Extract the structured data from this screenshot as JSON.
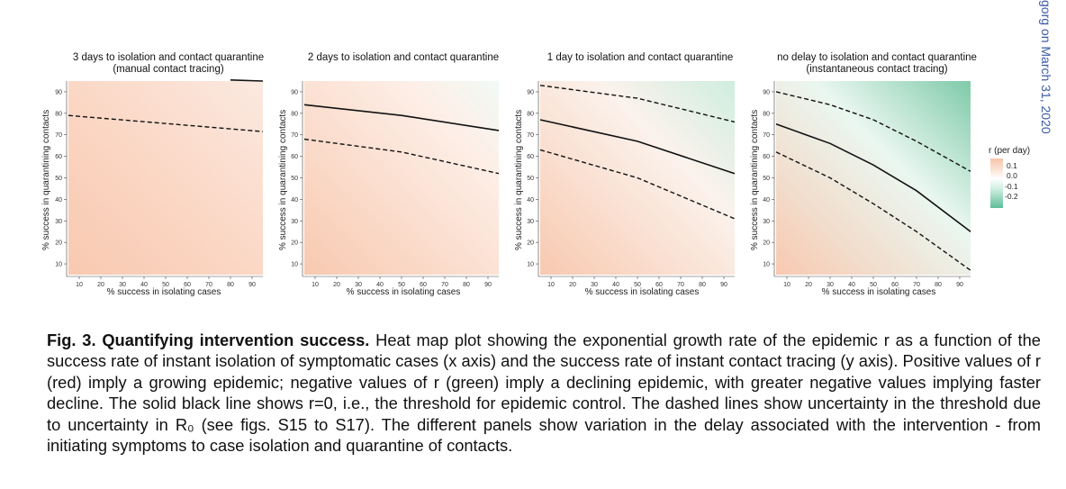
{
  "side_text": "gorg on March 31, 2020",
  "panels": [
    {
      "title_line1": "3 days to isolation and contact quarantine",
      "title_line2": "(manual contact tracing)"
    },
    {
      "title_line1": "2 days to isolation and contact quarantine",
      "title_line2": ""
    },
    {
      "title_line1": "1 day to isolation and contact quarantine",
      "title_line2": ""
    },
    {
      "title_line1": "no delay to isolation and contact quarantine",
      "title_line2": "(instantaneous contact tracing)"
    }
  ],
  "axes": {
    "xlabel": "% success in isolating cases",
    "ylabel": "% success in quarantining contacts",
    "xticks": [
      "10",
      "20",
      "30",
      "40",
      "50",
      "60",
      "70",
      "80",
      "90"
    ],
    "yticks": [
      "10",
      "20",
      "30",
      "40",
      "50",
      "60",
      "70",
      "80",
      "90"
    ]
  },
  "legend": {
    "title": "r (per day)",
    "ticks": [
      "0.1",
      "0.0",
      "-0.1",
      "-0.2"
    ],
    "colors": [
      "#f6c4aa",
      "#ffffff",
      "#a6dcc6",
      "#5fbd98"
    ]
  },
  "caption": {
    "bold": "Fig. 3. Quantifying intervention success.",
    "text": "Heat map plot showing the exponential growth rate of the epidemic r as a function of the success rate of instant isolation of symptomatic cases (x axis) and the success rate of instant contact tracing (y axis). Positive values of r (red) imply a growing epidemic; negative values of r (green) imply a declining epidemic, with greater negative values implying faster decline. The solid black line shows r=0, i.e., the threshold for epidemic control. The dashed lines show uncertainty in the threshold due to uncertainty in R₀ (see figs. S15 to S17). The different panels show variation in the delay associated with the intervention - from initiating symptoms to case isolation and quarantine of contacts."
  },
  "chart_data": [
    {
      "type": "heatmap",
      "title": "3 days to isolation and contact quarantine (manual contact tracing)",
      "xlabel": "% success in isolating cases",
      "ylabel": "% success in quarantining contacts",
      "xlim": [
        5,
        95
      ],
      "ylim": [
        5,
        95
      ],
      "threshold_solid": {
        "x": [
          80,
          95
        ],
        "y": [
          95.5,
          95
        ]
      },
      "threshold_dashed_lower": {
        "x": [
          5,
          95
        ],
        "y": [
          79,
          71.5
        ]
      },
      "threshold_dashed_upper": null,
      "r_range": [
        0.0,
        0.1
      ]
    },
    {
      "type": "heatmap",
      "title": "2 days to isolation and contact quarantine",
      "xlabel": "% success in isolating cases",
      "ylabel": "% success in quarantining contacts",
      "xlim": [
        5,
        95
      ],
      "ylim": [
        5,
        95
      ],
      "threshold_solid": {
        "x": [
          5,
          50,
          95
        ],
        "y": [
          84,
          79,
          72
        ]
      },
      "threshold_dashed_lower": {
        "x": [
          5,
          50,
          95
        ],
        "y": [
          68,
          62,
          52
        ]
      },
      "threshold_dashed_upper": null,
      "r_range": [
        -0.05,
        0.1
      ]
    },
    {
      "type": "heatmap",
      "title": "1 day to isolation and contact quarantine",
      "xlabel": "% success in isolating cases",
      "ylabel": "% success in quarantining contacts",
      "xlim": [
        5,
        95
      ],
      "ylim": [
        5,
        95
      ],
      "threshold_solid": {
        "x": [
          5,
          50,
          95
        ],
        "y": [
          77,
          67,
          52
        ]
      },
      "threshold_dashed_lower": {
        "x": [
          5,
          50,
          95
        ],
        "y": [
          63,
          50,
          31
        ]
      },
      "threshold_dashed_upper": {
        "x": [
          5,
          50,
          95
        ],
        "y": [
          93,
          87,
          76
        ]
      },
      "r_range": [
        -0.1,
        0.1
      ]
    },
    {
      "type": "heatmap",
      "title": "no delay to isolation and contact quarantine (instantaneous contact tracing)",
      "xlabel": "% success in isolating cases",
      "ylabel": "% success in quarantining contacts",
      "xlim": [
        5,
        95
      ],
      "ylim": [
        5,
        95
      ],
      "threshold_solid": {
        "x": [
          5,
          30,
          50,
          70,
          95
        ],
        "y": [
          75,
          66,
          56,
          44,
          25
        ]
      },
      "threshold_dashed_lower": {
        "x": [
          5,
          30,
          50,
          70,
          95
        ],
        "y": [
          62,
          50,
          38,
          25,
          7
        ]
      },
      "threshold_dashed_upper": {
        "x": [
          5,
          30,
          50,
          70,
          95
        ],
        "y": [
          90,
          84,
          77,
          67,
          53
        ]
      },
      "r_range": [
        -0.2,
        0.1
      ]
    }
  ]
}
